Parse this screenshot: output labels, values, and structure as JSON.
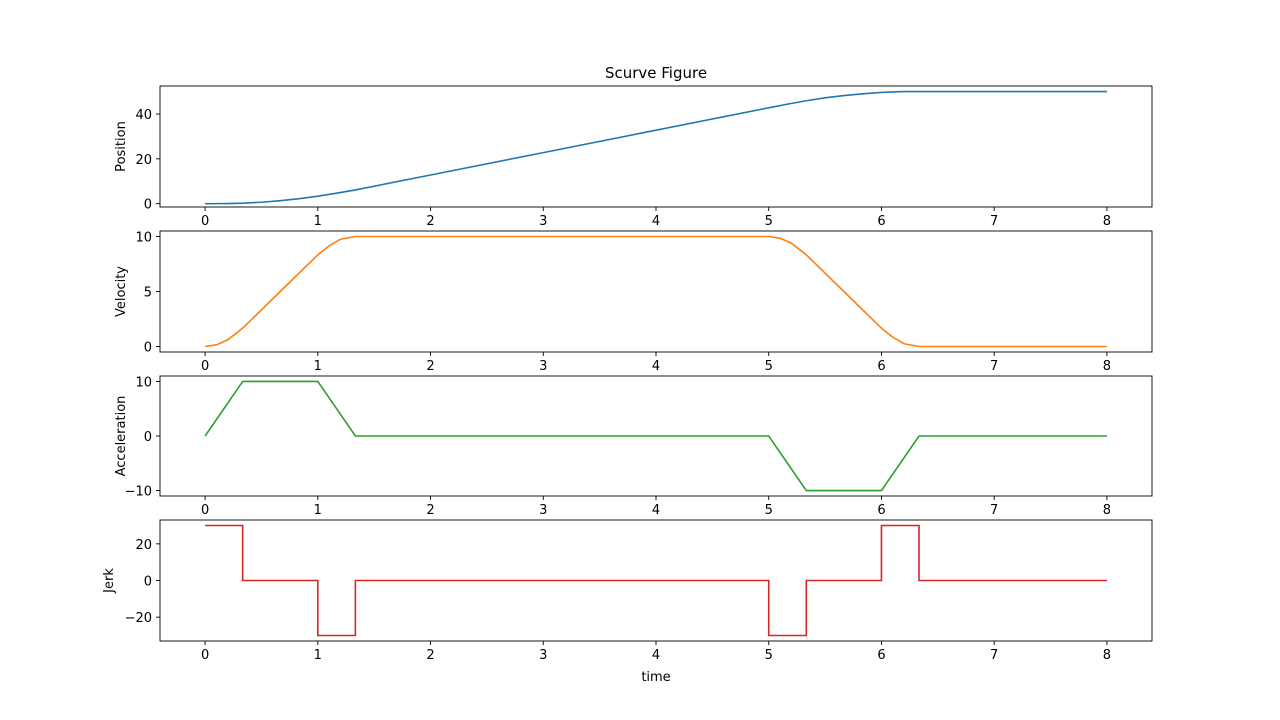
{
  "figure": {
    "title": "Scurve Figure",
    "xlabel": "time"
  },
  "chart_data": [
    {
      "type": "line",
      "ylabel": "Position",
      "xlim": [
        -0.4,
        8.4
      ],
      "ylim": [
        -1.5,
        52.5
      ],
      "xticks": [
        0,
        1,
        2,
        3,
        4,
        5,
        6,
        7,
        8
      ],
      "yticks": [
        0,
        20,
        40
      ],
      "grid": false,
      "series": [
        {
          "color": "#1f77b4",
          "x": [
            0,
            0.1,
            0.2,
            0.3333,
            0.5,
            0.6667,
            0.8333,
            1.0,
            1.1667,
            1.3333,
            2.0,
            3.0,
            4.0,
            5.0,
            5.1667,
            5.3333,
            5.5,
            5.6667,
            5.8333,
            6.0,
            6.1,
            6.2,
            6.3333,
            7.0,
            8.0
          ],
          "y": [
            0,
            0.005,
            0.04,
            0.185,
            0.625,
            1.296,
            2.199,
            3.333,
            4.676,
            6.111,
            12.778,
            22.778,
            32.778,
            42.778,
            44.421,
            45.926,
            47.222,
            48.241,
            49.028,
            49.63,
            49.869,
            49.995,
            50.0,
            50.0,
            50.0
          ]
        }
      ]
    },
    {
      "type": "line",
      "ylabel": "Velocity",
      "xlim": [
        -0.4,
        8.4
      ],
      "ylim": [
        -0.5,
        10.5
      ],
      "xticks": [
        0,
        1,
        2,
        3,
        4,
        5,
        6,
        7,
        8
      ],
      "yticks": [
        0,
        5,
        10
      ],
      "grid": false,
      "series": [
        {
          "color": "#ff7f0e",
          "x": [
            0,
            0.1,
            0.2,
            0.3333,
            0.6667,
            1.0,
            1.1,
            1.2,
            1.3333,
            5.0,
            5.1,
            5.2,
            5.3333,
            5.6667,
            6.0,
            6.1,
            6.2,
            6.3333,
            8.0
          ],
          "y": [
            0,
            0.15,
            0.6,
            1.667,
            5.0,
            8.333,
            9.15,
            9.75,
            10.0,
            10.0,
            9.85,
            9.4,
            8.333,
            5.0,
            1.667,
            0.85,
            0.25,
            0.0,
            0.0
          ]
        }
      ]
    },
    {
      "type": "line",
      "ylabel": "Acceleration",
      "xlim": [
        -0.4,
        8.4
      ],
      "ylim": [
        -11,
        11
      ],
      "xticks": [
        0,
        1,
        2,
        3,
        4,
        5,
        6,
        7,
        8
      ],
      "yticks": [
        -10,
        0,
        10
      ],
      "grid": false,
      "series": [
        {
          "color": "#2ca02c",
          "x": [
            0,
            0.3333,
            1.0,
            1.3333,
            5.0,
            5.3333,
            6.0,
            6.3333,
            8.0
          ],
          "y": [
            0,
            10,
            10,
            0,
            0,
            -10,
            -10,
            0,
            0
          ]
        }
      ]
    },
    {
      "type": "line",
      "ylabel": "Jerk",
      "xlim": [
        -0.4,
        8.4
      ],
      "ylim": [
        -33,
        33
      ],
      "xticks": [
        0,
        1,
        2,
        3,
        4,
        5,
        6,
        7,
        8
      ],
      "yticks": [
        -20,
        0,
        20
      ],
      "grid": false,
      "series": [
        {
          "color": "#d62728",
          "x": [
            0,
            0.3333,
            0.3333,
            1.0,
            1.0,
            1.3333,
            1.3333,
            5.0,
            5.0,
            5.3333,
            5.3333,
            6.0,
            6.0,
            6.3333,
            6.3333,
            8.0
          ],
          "y": [
            30,
            30,
            0,
            0,
            -30,
            -30,
            0,
            0,
            -30,
            -30,
            0,
            0,
            30,
            30,
            0,
            0
          ]
        }
      ]
    }
  ]
}
